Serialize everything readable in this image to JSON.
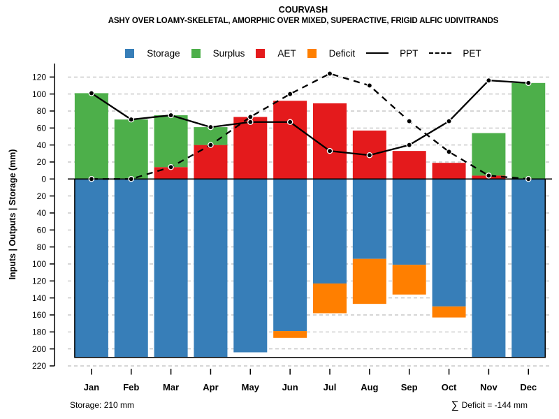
{
  "header": {
    "title": "COURVASH",
    "subtitle": "ASHY OVER LOAMY-SKELETAL, AMORPHIC OVER MIXED, SUPERACTIVE, FRIGID ALFIC UDIVITRANDS"
  },
  "legend": {
    "items": [
      {
        "label": "Storage",
        "swatch": "box",
        "color": "#377EB8"
      },
      {
        "label": "Surplus",
        "swatch": "box",
        "color": "#4DAF4A"
      },
      {
        "label": "AET",
        "swatch": "box",
        "color": "#E41A1C"
      },
      {
        "label": "Deficit",
        "swatch": "box",
        "color": "#FF7F00"
      },
      {
        "label": "PPT",
        "swatch": "line-solid",
        "color": "#000000"
      },
      {
        "label": "PET",
        "swatch": "line-dashed",
        "color": "#000000"
      }
    ]
  },
  "footer": {
    "left": "Storage: 210 mm",
    "sum_symbol": "∑",
    "sum_text": "Deficit = -144 mm"
  },
  "colors": {
    "storage": "#377EB8",
    "surplus": "#4DAF4A",
    "aet": "#E41A1C",
    "deficit": "#FF7F00",
    "lines": "#000000",
    "grid": "#BDBDBD"
  },
  "chart_data": {
    "type": "bar",
    "title": "COURVASH",
    "subtitle": "ASHY OVER LOAMY-SKELETAL, AMORPHIC OVER MIXED, SUPERACTIVE, FRIGID ALFIC UDIVITRANDS",
    "categories": [
      "Jan",
      "Feb",
      "Mar",
      "Apr",
      "May",
      "Jun",
      "Jul",
      "Aug",
      "Sep",
      "Oct",
      "Nov",
      "Dec"
    ],
    "ylabel": "Inputs | Outputs | Storage   (mm)",
    "yticks_above_zero": [
      120,
      100,
      80,
      60,
      40,
      20,
      0
    ],
    "yticks_below_zero": [
      20,
      40,
      60,
      80,
      100,
      120,
      140,
      160,
      180,
      200,
      220
    ],
    "ylim_mm": [
      -220,
      136
    ],
    "grid": "horizontal dashed",
    "legend_position": "top center",
    "series": [
      {
        "name": "Storage",
        "type": "bar-down",
        "color": "#377EB8",
        "values": [
          210,
          210,
          210,
          210,
          204,
          179,
          123,
          94,
          101,
          150,
          210,
          210
        ]
      },
      {
        "name": "Deficit",
        "type": "bar-down-stacked-on-storage",
        "color": "#FF7F00",
        "values": [
          0,
          0,
          0,
          0,
          0,
          8,
          35,
          53,
          35,
          13,
          0,
          0
        ]
      },
      {
        "name": "AET",
        "type": "bar-up",
        "color": "#E41A1C",
        "values": [
          0,
          0,
          14,
          40,
          73,
          92,
          89,
          57,
          33,
          19,
          4,
          0
        ]
      },
      {
        "name": "Surplus",
        "type": "bar-up-stacked-on-aet",
        "color": "#4DAF4A",
        "values": [
          101,
          70,
          61,
          21,
          0,
          0,
          0,
          0,
          0,
          0,
          50,
          113
        ]
      },
      {
        "name": "PPT",
        "type": "line",
        "style": "solid",
        "color": "#000000",
        "values": [
          101,
          70,
          75,
          61,
          67,
          67,
          33,
          28,
          40,
          68,
          116,
          113
        ]
      },
      {
        "name": "PET",
        "type": "line",
        "style": "dashed",
        "color": "#000000",
        "values": [
          0,
          0,
          14,
          40,
          73,
          100,
          124,
          110,
          68,
          32,
          4,
          0
        ]
      }
    ],
    "annotations": {
      "storage_capacity_mm": 210,
      "sum_deficit_mm": -144
    }
  }
}
